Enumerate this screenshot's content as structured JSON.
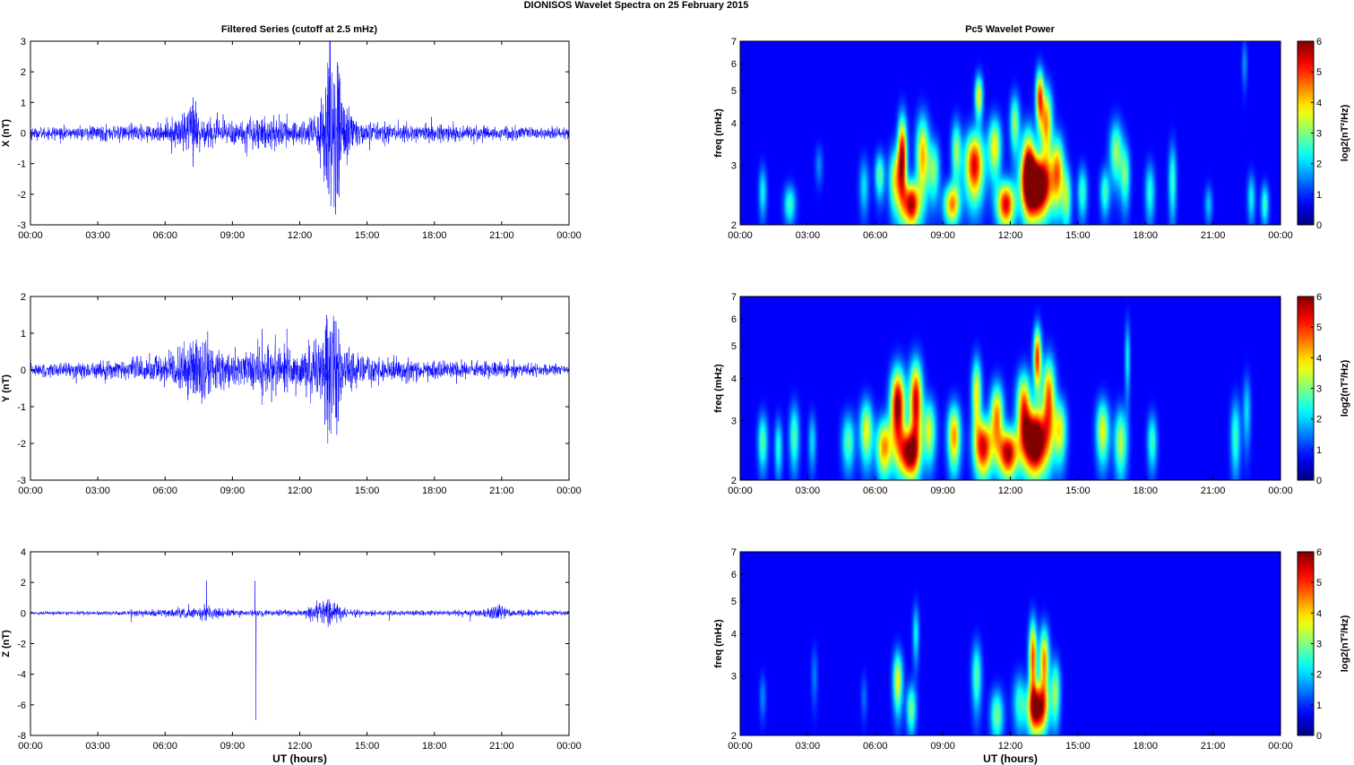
{
  "page": {
    "suptitle": "DIONISOS Wavelet Spectra on 25 February  2015",
    "left_title": "Filtered Series (cutoff at 2.5 mHz)",
    "right_title": "Pc5 Wavelet Power",
    "x_label_bottom": "UT (hours)"
  },
  "colors": {
    "series_line": "#0000ff",
    "axes": "#000000",
    "spectrum_background": "#00008f",
    "colormap": "jet"
  },
  "chart_data": [
    {
      "type": "line",
      "name": "X",
      "ylabel": "X (nT)",
      "xlim": [
        0,
        24
      ],
      "x_unit": "hours UT",
      "ylim": [
        -3,
        3
      ],
      "xticklabels": [
        "00:00",
        "03:00",
        "06:00",
        "09:00",
        "12:00",
        "15:00",
        "18:00",
        "21:00",
        "00:00"
      ],
      "yticks": [
        -3,
        -2,
        -1,
        0,
        1,
        2,
        3
      ],
      "yticklabels": [
        "-3",
        "-2",
        "-1",
        "0",
        "1",
        "2",
        "3"
      ],
      "noise_floor": 0.12,
      "envelope": [
        [
          0,
          0.15
        ],
        [
          2,
          0.15
        ],
        [
          4,
          0.18
        ],
        [
          6,
          0.2
        ],
        [
          7,
          0.6
        ],
        [
          7.3,
          0.9
        ],
        [
          7.6,
          0.5
        ],
        [
          8,
          0.35
        ],
        [
          9,
          0.3
        ],
        [
          10,
          0.4
        ],
        [
          11,
          0.35
        ],
        [
          12,
          0.3
        ],
        [
          12.8,
          0.5
        ],
        [
          13.2,
          1.6
        ],
        [
          13.6,
          2.2
        ],
        [
          14,
          1.0
        ],
        [
          14.5,
          0.3
        ],
        [
          16,
          0.2
        ],
        [
          18,
          0.22
        ],
        [
          20,
          0.18
        ],
        [
          22,
          0.15
        ],
        [
          24,
          0.12
        ]
      ],
      "spikes": [
        [
          7.2,
          0.9
        ],
        [
          7.25,
          -1.1
        ],
        [
          13.25,
          2.3
        ],
        [
          13.3,
          -2.0
        ],
        [
          13.7,
          2.2
        ],
        [
          13.75,
          -2.1
        ]
      ]
    },
    {
      "type": "line",
      "name": "Y",
      "ylabel": "Y (nT)",
      "xlim": [
        0,
        24
      ],
      "x_unit": "hours UT",
      "ylim": [
        -3,
        2
      ],
      "xticklabels": [
        "00:00",
        "03:00",
        "06:00",
        "09:00",
        "12:00",
        "15:00",
        "18:00",
        "21:00",
        "00:00"
      ],
      "yticks": [
        -3,
        -2,
        -1,
        0,
        1,
        2
      ],
      "yticklabels": [
        "-3",
        "-2",
        "-1",
        "0",
        "1",
        "2"
      ],
      "noise_floor": 0.1,
      "envelope": [
        [
          0,
          0.12
        ],
        [
          2,
          0.15
        ],
        [
          4,
          0.2
        ],
        [
          6,
          0.3
        ],
        [
          7,
          0.55
        ],
        [
          7.5,
          0.8
        ],
        [
          8,
          0.5
        ],
        [
          9,
          0.35
        ],
        [
          10,
          0.4
        ],
        [
          11,
          0.5
        ],
        [
          12,
          0.35
        ],
        [
          12.8,
          0.6
        ],
        [
          13.2,
          1.3
        ],
        [
          13.5,
          1.0
        ],
        [
          14,
          0.5
        ],
        [
          15,
          0.25
        ],
        [
          17,
          0.2
        ],
        [
          19,
          0.18
        ],
        [
          21,
          0.15
        ],
        [
          24,
          0.12
        ]
      ],
      "spikes": [
        [
          7.9,
          1.05
        ],
        [
          13.2,
          1.5
        ],
        [
          13.25,
          -2.0
        ],
        [
          13.6,
          -1.3
        ]
      ]
    },
    {
      "type": "line",
      "name": "Z",
      "ylabel": "Z (nT)",
      "xlabel": "UT (hours)",
      "xlim": [
        0,
        24
      ],
      "x_unit": "hours UT",
      "ylim": [
        -8,
        4
      ],
      "xticklabels": [
        "00:00",
        "03:00",
        "06:00",
        "09:00",
        "12:00",
        "15:00",
        "18:00",
        "21:00",
        "00:00"
      ],
      "yticks": [
        -8,
        -6,
        -4,
        -2,
        0,
        2,
        4
      ],
      "yticklabels": [
        "-8",
        "-6",
        "-4",
        "-2",
        "0",
        "2",
        "4"
      ],
      "noise_floor": 0.06,
      "envelope": [
        [
          0,
          0.08
        ],
        [
          4,
          0.1
        ],
        [
          7,
          0.25
        ],
        [
          8,
          0.3
        ],
        [
          9,
          0.15
        ],
        [
          10,
          0.15
        ],
        [
          12,
          0.15
        ],
        [
          13.2,
          0.6
        ],
        [
          13.6,
          0.5
        ],
        [
          14,
          0.2
        ],
        [
          16,
          0.1
        ],
        [
          20,
          0.15
        ],
        [
          20.8,
          0.4
        ],
        [
          21.3,
          0.2
        ],
        [
          24,
          0.08
        ]
      ],
      "spikes": [
        [
          4.5,
          -0.6
        ],
        [
          7.85,
          2.1
        ],
        [
          10.0,
          2.1
        ],
        [
          10.05,
          -7.0
        ],
        [
          13.3,
          0.9
        ],
        [
          13.35,
          -0.8
        ],
        [
          16.0,
          -0.5
        ],
        [
          19.6,
          -0.55
        ],
        [
          20.85,
          0.5
        ]
      ]
    },
    {
      "type": "heatmap",
      "name": "X",
      "ylabel": "freq (mHz)",
      "colorbar_label": "log2(nT²/Hz)",
      "xlim": [
        0,
        24
      ],
      "ylim": [
        2,
        7
      ],
      "y_scale": "log",
      "clim": [
        0,
        6
      ],
      "colormap": "jet",
      "xticklabels": [
        "00:00",
        "03:00",
        "06:00",
        "09:00",
        "12:00",
        "15:00",
        "18:00",
        "21:00",
        "00:00"
      ],
      "yticks": [
        2,
        3,
        4,
        5,
        6,
        7
      ],
      "yticklabels": [
        "2",
        "3",
        "4",
        "5",
        "6",
        "7"
      ],
      "cticks": [
        0,
        1,
        2,
        3,
        4,
        5,
        6
      ],
      "cticklabels": [
        "0",
        "1",
        "2",
        "3",
        "4",
        "5",
        "6"
      ],
      "blobs": [
        {
          "t": 1.0,
          "f": 2.5,
          "amp": 1.8,
          "dt": 0.12,
          "df": 0.22
        },
        {
          "t": 2.2,
          "f": 2.3,
          "amp": 2.2,
          "dt": 0.18,
          "df": 0.15
        },
        {
          "t": 3.5,
          "f": 3.0,
          "amp": 1.0,
          "dt": 0.12,
          "df": 0.2
        },
        {
          "t": 5.5,
          "f": 2.6,
          "amp": 1.6,
          "dt": 0.15,
          "df": 0.25
        },
        {
          "t": 6.2,
          "f": 2.8,
          "amp": 2.5,
          "dt": 0.15,
          "df": 0.22
        },
        {
          "t": 6.9,
          "f": 2.7,
          "amp": 3.4,
          "dt": 0.2,
          "df": 0.3
        },
        {
          "t": 7.2,
          "f": 3.2,
          "amp": 5.5,
          "dt": 0.14,
          "df": 0.45
        },
        {
          "t": 7.6,
          "f": 2.3,
          "amp": 5.8,
          "dt": 0.25,
          "df": 0.18
        },
        {
          "t": 8.1,
          "f": 3.2,
          "amp": 4.0,
          "dt": 0.2,
          "df": 0.45
        },
        {
          "t": 8.6,
          "f": 2.9,
          "amp": 2.6,
          "dt": 0.18,
          "df": 0.3
        },
        {
          "t": 9.4,
          "f": 2.3,
          "amp": 4.2,
          "dt": 0.25,
          "df": 0.16
        },
        {
          "t": 9.6,
          "f": 3.3,
          "amp": 2.8,
          "dt": 0.15,
          "df": 0.35
        },
        {
          "t": 10.4,
          "f": 3.0,
          "amp": 5.4,
          "dt": 0.3,
          "df": 0.35
        },
        {
          "t": 10.6,
          "f": 4.8,
          "amp": 3.6,
          "dt": 0.12,
          "df": 0.35
        },
        {
          "t": 11.3,
          "f": 3.4,
          "amp": 3.5,
          "dt": 0.2,
          "df": 0.35
        },
        {
          "t": 11.8,
          "f": 2.3,
          "amp": 5.4,
          "dt": 0.28,
          "df": 0.18
        },
        {
          "t": 12.2,
          "f": 4.0,
          "amp": 2.8,
          "dt": 0.15,
          "df": 0.4
        },
        {
          "t": 12.8,
          "f": 3.0,
          "amp": 4.8,
          "dt": 0.22,
          "df": 0.4
        },
        {
          "t": 13.2,
          "f": 2.6,
          "amp": 8.0,
          "dt": 0.42,
          "df": 0.26
        },
        {
          "t": 13.3,
          "f": 4.8,
          "amp": 4.6,
          "dt": 0.12,
          "df": 0.45
        },
        {
          "t": 13.6,
          "f": 4.0,
          "amp": 4.2,
          "dt": 0.18,
          "df": 0.5
        },
        {
          "t": 14.1,
          "f": 2.9,
          "amp": 4.0,
          "dt": 0.2,
          "df": 0.35
        },
        {
          "t": 14.5,
          "f": 2.4,
          "amp": 2.6,
          "dt": 0.15,
          "df": 0.25
        },
        {
          "t": 15.2,
          "f": 2.5,
          "amp": 2.2,
          "dt": 0.15,
          "df": 0.22
        },
        {
          "t": 16.2,
          "f": 2.5,
          "amp": 2.2,
          "dt": 0.15,
          "df": 0.2
        },
        {
          "t": 16.7,
          "f": 3.3,
          "amp": 2.8,
          "dt": 0.2,
          "df": 0.35
        },
        {
          "t": 17.1,
          "f": 2.8,
          "amp": 2.4,
          "dt": 0.15,
          "df": 0.3
        },
        {
          "t": 18.2,
          "f": 2.5,
          "amp": 2.0,
          "dt": 0.15,
          "df": 0.25
        },
        {
          "t": 19.2,
          "f": 2.7,
          "amp": 2.2,
          "dt": 0.12,
          "df": 0.35
        },
        {
          "t": 20.8,
          "f": 2.3,
          "amp": 1.4,
          "dt": 0.12,
          "df": 0.15
        },
        {
          "t": 22.4,
          "f": 6.0,
          "amp": 1.1,
          "dt": 0.08,
          "df": 0.5
        },
        {
          "t": 22.7,
          "f": 2.4,
          "amp": 1.8,
          "dt": 0.12,
          "df": 0.2
        },
        {
          "t": 23.3,
          "f": 2.3,
          "amp": 2.2,
          "dt": 0.12,
          "df": 0.16
        }
      ]
    },
    {
      "type": "heatmap",
      "name": "Y",
      "ylabel": "freq (mHz)",
      "colorbar_label": "log2(nT²/Hz)",
      "xlim": [
        0,
        24
      ],
      "ylim": [
        2,
        7
      ],
      "y_scale": "log",
      "clim": [
        0,
        6
      ],
      "colormap": "jet",
      "xticklabels": [
        "00:00",
        "03:00",
        "06:00",
        "09:00",
        "12:00",
        "15:00",
        "18:00",
        "21:00",
        "00:00"
      ],
      "yticks": [
        2,
        3,
        4,
        5,
        6,
        7
      ],
      "yticklabels": [
        "2",
        "3",
        "4",
        "5",
        "6",
        "7"
      ],
      "cticks": [
        0,
        1,
        2,
        3,
        4,
        5,
        6
      ],
      "cticklabels": [
        "0",
        "1",
        "2",
        "3",
        "4",
        "5",
        "6"
      ],
      "blobs": [
        {
          "t": 1.0,
          "f": 2.6,
          "amp": 2.4,
          "dt": 0.15,
          "df": 0.25
        },
        {
          "t": 1.7,
          "f": 2.5,
          "amp": 2.0,
          "dt": 0.12,
          "df": 0.25
        },
        {
          "t": 2.4,
          "f": 2.7,
          "amp": 2.4,
          "dt": 0.15,
          "df": 0.3
        },
        {
          "t": 3.2,
          "f": 2.6,
          "amp": 1.6,
          "dt": 0.12,
          "df": 0.25
        },
        {
          "t": 4.8,
          "f": 2.6,
          "amp": 2.4,
          "dt": 0.2,
          "df": 0.25
        },
        {
          "t": 5.6,
          "f": 2.8,
          "amp": 3.4,
          "dt": 0.2,
          "df": 0.3
        },
        {
          "t": 6.4,
          "f": 2.5,
          "amp": 4.2,
          "dt": 0.25,
          "df": 0.25
        },
        {
          "t": 7.0,
          "f": 3.3,
          "amp": 6.2,
          "dt": 0.22,
          "df": 0.45
        },
        {
          "t": 7.5,
          "f": 2.4,
          "amp": 5.8,
          "dt": 0.3,
          "df": 0.2
        },
        {
          "t": 7.8,
          "f": 3.4,
          "amp": 5.6,
          "dt": 0.2,
          "df": 0.5
        },
        {
          "t": 8.4,
          "f": 2.8,
          "amp": 3.2,
          "dt": 0.2,
          "df": 0.3
        },
        {
          "t": 9.5,
          "f": 2.7,
          "amp": 4.2,
          "dt": 0.2,
          "df": 0.3
        },
        {
          "t": 10.5,
          "f": 3.6,
          "amp": 3.6,
          "dt": 0.15,
          "df": 0.45
        },
        {
          "t": 10.8,
          "f": 2.5,
          "amp": 5.4,
          "dt": 0.28,
          "df": 0.25
        },
        {
          "t": 11.4,
          "f": 3.1,
          "amp": 4.2,
          "dt": 0.2,
          "df": 0.35
        },
        {
          "t": 11.9,
          "f": 2.4,
          "amp": 5.8,
          "dt": 0.3,
          "df": 0.2
        },
        {
          "t": 12.6,
          "f": 3.3,
          "amp": 4.5,
          "dt": 0.22,
          "df": 0.4
        },
        {
          "t": 13.1,
          "f": 2.6,
          "amp": 7.6,
          "dt": 0.38,
          "df": 0.28
        },
        {
          "t": 13.2,
          "f": 4.6,
          "amp": 5.0,
          "dt": 0.12,
          "df": 0.5
        },
        {
          "t": 13.7,
          "f": 3.5,
          "amp": 4.6,
          "dt": 0.2,
          "df": 0.5
        },
        {
          "t": 14.2,
          "f": 2.8,
          "amp": 3.4,
          "dt": 0.2,
          "df": 0.3
        },
        {
          "t": 16.1,
          "f": 2.8,
          "amp": 3.4,
          "dt": 0.2,
          "df": 0.3
        },
        {
          "t": 16.9,
          "f": 2.6,
          "amp": 3.0,
          "dt": 0.2,
          "df": 0.3
        },
        {
          "t": 17.2,
          "f": 4.6,
          "amp": 1.8,
          "dt": 0.08,
          "df": 0.6
        },
        {
          "t": 18.3,
          "f": 2.6,
          "amp": 2.2,
          "dt": 0.15,
          "df": 0.25
        },
        {
          "t": 22.0,
          "f": 2.7,
          "amp": 2.2,
          "dt": 0.15,
          "df": 0.35
        },
        {
          "t": 22.5,
          "f": 3.2,
          "amp": 1.6,
          "dt": 0.12,
          "df": 0.4
        }
      ]
    },
    {
      "type": "heatmap",
      "name": "Z",
      "ylabel": "freq (mHz)",
      "xlabel": "UT (hours)",
      "colorbar_label": "log2(nT²/Hz)",
      "xlim": [
        0,
        24
      ],
      "ylim": [
        2,
        7
      ],
      "y_scale": "log",
      "clim": [
        0,
        6
      ],
      "colormap": "jet",
      "xticklabels": [
        "00:00",
        "03:00",
        "06:00",
        "09:00",
        "12:00",
        "15:00",
        "18:00",
        "21:00",
        "00:00"
      ],
      "yticks": [
        2,
        3,
        4,
        5,
        6,
        7
      ],
      "yticklabels": [
        "2",
        "3",
        "4",
        "5",
        "6",
        "7"
      ],
      "cticks": [
        0,
        1,
        2,
        3,
        4,
        5,
        6
      ],
      "cticklabels": [
        "0",
        "1",
        "2",
        "3",
        "4",
        "5",
        "6"
      ],
      "blobs": [
        {
          "t": 1.0,
          "f": 2.6,
          "amp": 1.0,
          "dt": 0.1,
          "df": 0.2
        },
        {
          "t": 3.3,
          "f": 3.0,
          "amp": 0.9,
          "dt": 0.1,
          "df": 0.3
        },
        {
          "t": 5.5,
          "f": 2.6,
          "amp": 0.8,
          "dt": 0.1,
          "df": 0.2
        },
        {
          "t": 7.0,
          "f": 2.9,
          "amp": 3.4,
          "dt": 0.15,
          "df": 0.3
        },
        {
          "t": 7.6,
          "f": 2.4,
          "amp": 2.6,
          "dt": 0.15,
          "df": 0.2
        },
        {
          "t": 7.8,
          "f": 4.0,
          "amp": 1.8,
          "dt": 0.1,
          "df": 0.4
        },
        {
          "t": 10.5,
          "f": 3.0,
          "amp": 2.4,
          "dt": 0.15,
          "df": 0.35
        },
        {
          "t": 11.4,
          "f": 2.3,
          "amp": 2.6,
          "dt": 0.2,
          "df": 0.2
        },
        {
          "t": 12.4,
          "f": 2.5,
          "amp": 2.0,
          "dt": 0.2,
          "df": 0.25
        },
        {
          "t": 13.0,
          "f": 3.4,
          "amp": 4.8,
          "dt": 0.12,
          "df": 0.45
        },
        {
          "t": 13.2,
          "f": 2.4,
          "amp": 6.2,
          "dt": 0.3,
          "df": 0.2
        },
        {
          "t": 13.5,
          "f": 3.3,
          "amp": 4.4,
          "dt": 0.15,
          "df": 0.4
        },
        {
          "t": 14.0,
          "f": 2.7,
          "amp": 2.8,
          "dt": 0.15,
          "df": 0.3
        }
      ]
    }
  ]
}
